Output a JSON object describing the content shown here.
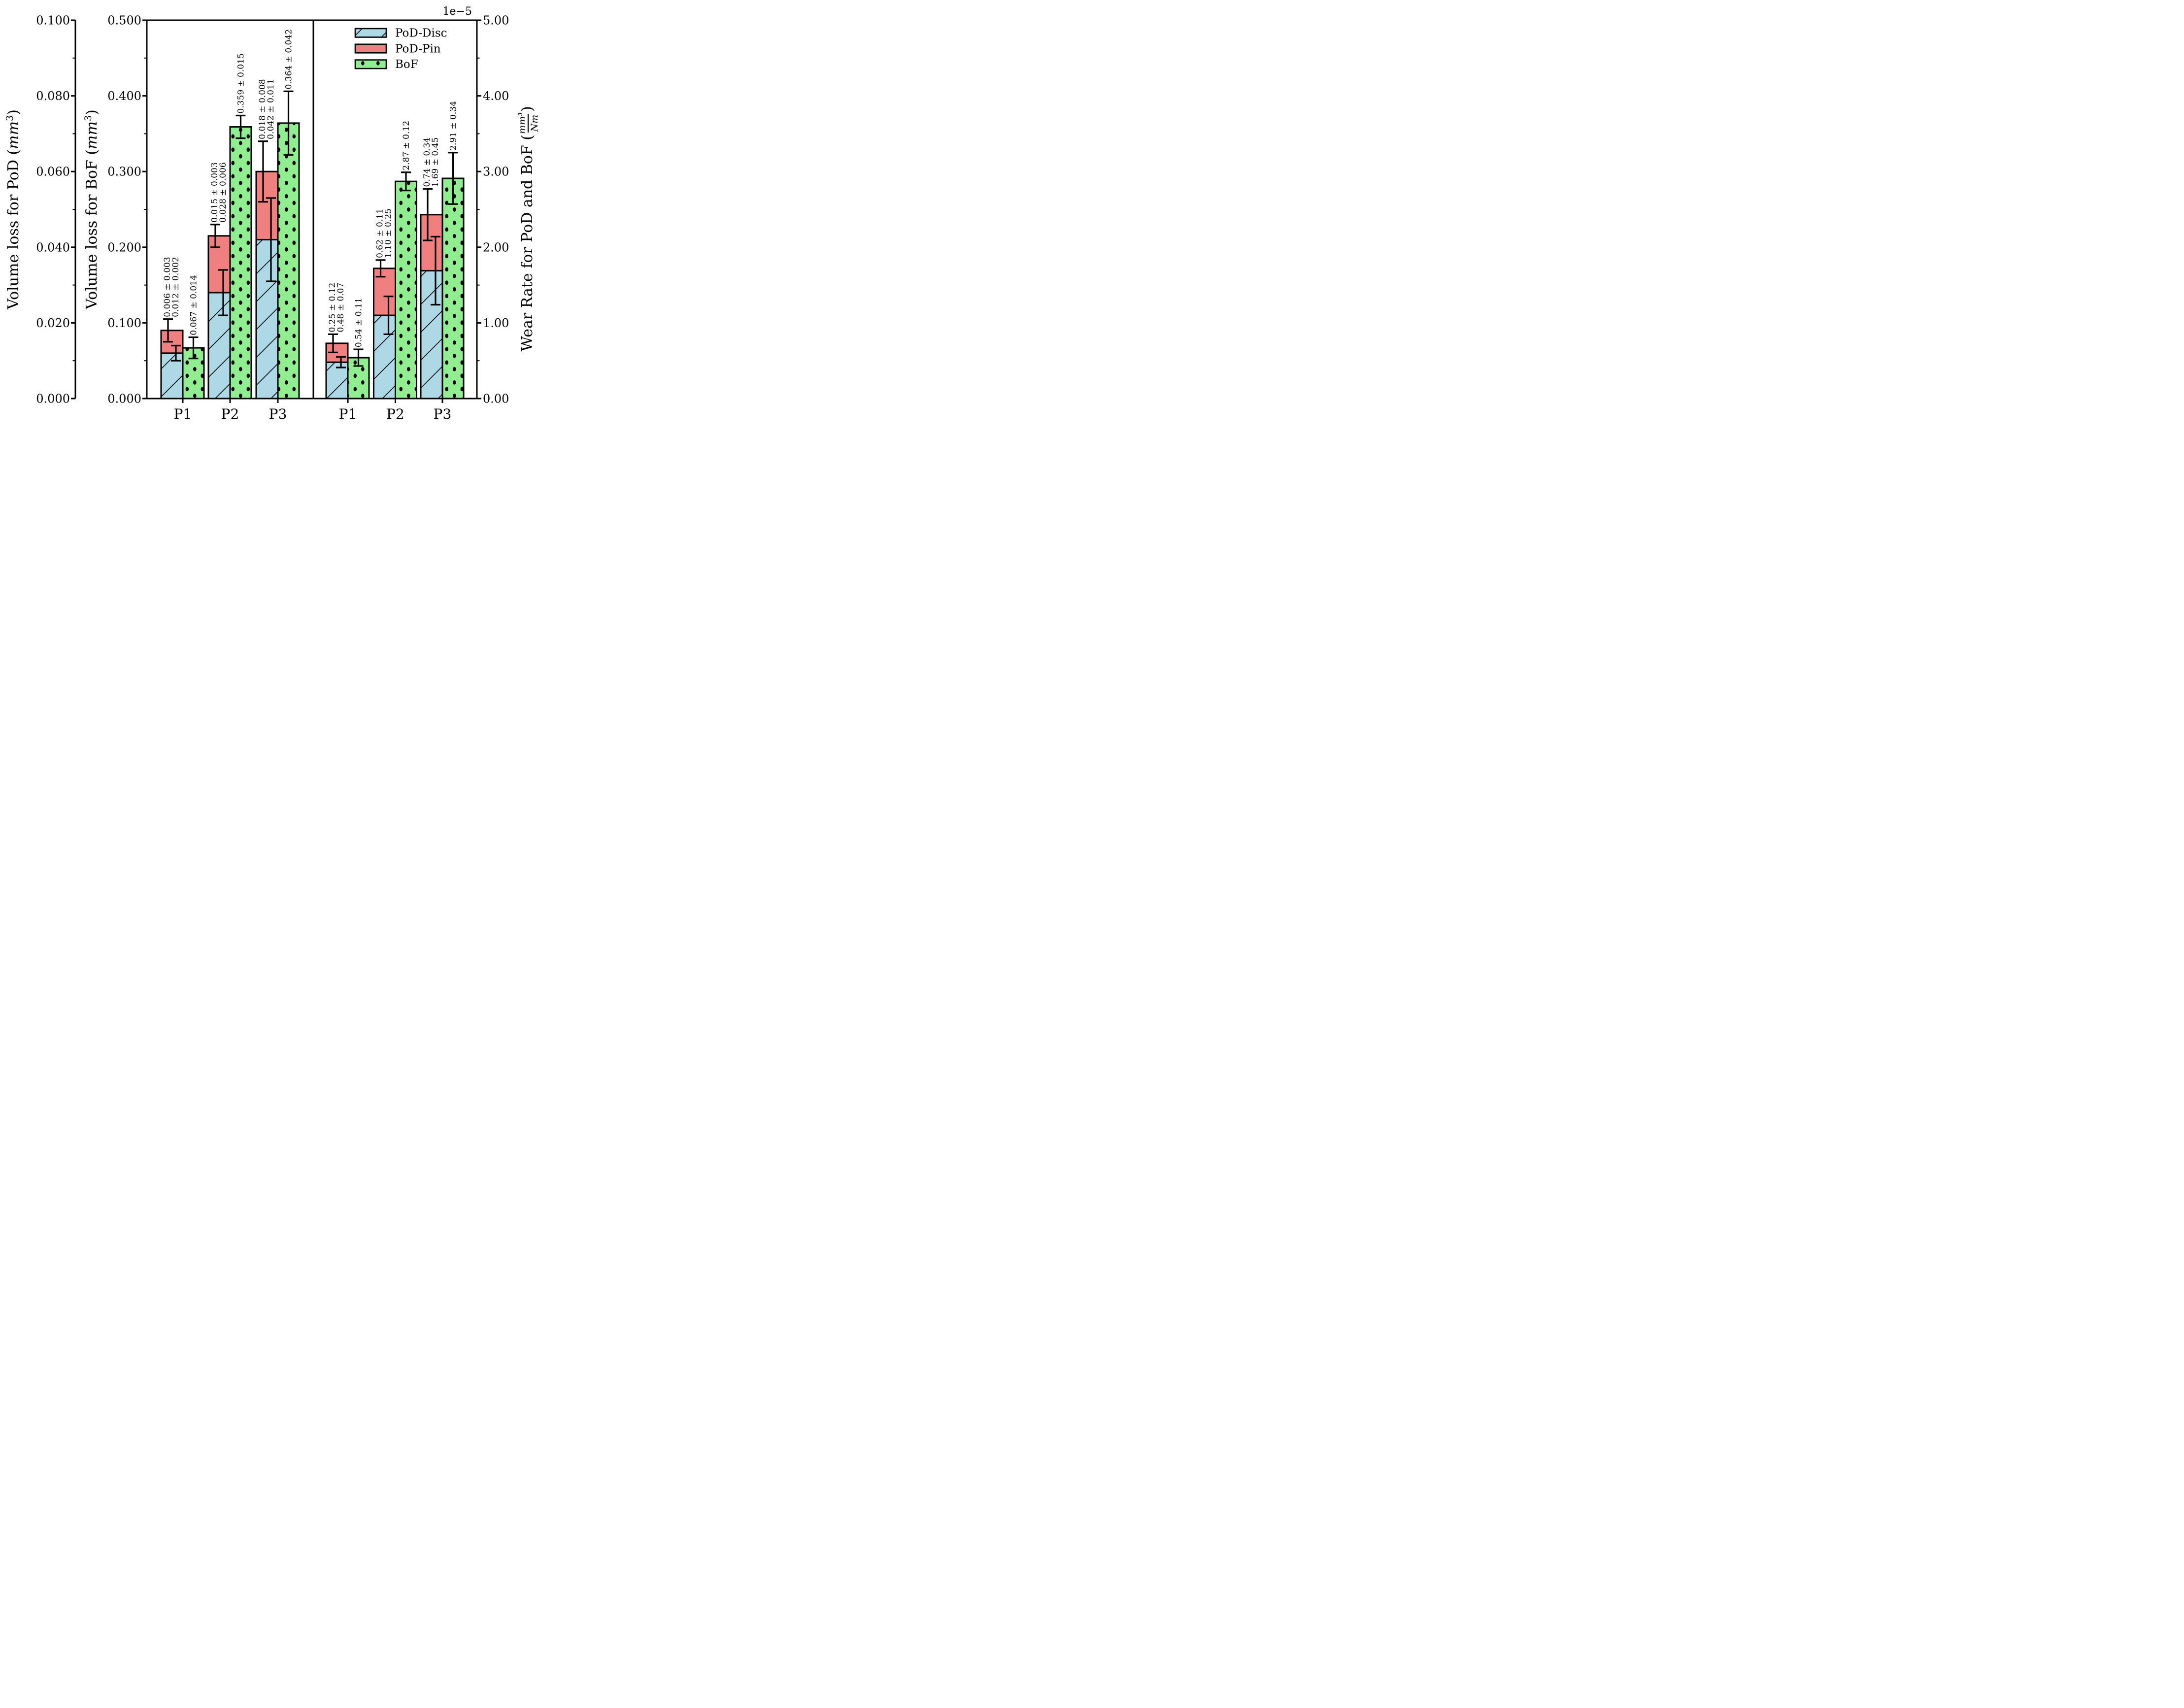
{
  "background": "#ffffff",
  "chart_data": {
    "type": "bar",
    "title": "",
    "grid": false,
    "legend_position": "upper area of right panel",
    "offset_label": "1e−5",
    "colors": {
      "disc": "#ADD8E6",
      "pin": "#F08080",
      "bof": "#90EE90",
      "edge": "#000000"
    },
    "legend": [
      {
        "label": "PoD-Disc",
        "color": "#ADD8E6",
        "hatch": "diagonal"
      },
      {
        "label": "PoD-Pin",
        "color": "#F08080",
        "hatch": "none"
      },
      {
        "label": "BoF",
        "color": "#90EE90",
        "hatch": "dots"
      }
    ],
    "axes": {
      "pod": {
        "title_pre": "Volume loss for PoD (",
        "title_math": "mm",
        "title_sup": "3",
        "title_post": ")",
        "range": [
          0,
          0.1
        ],
        "ticks": [
          "0.000",
          "0.020",
          "0.040",
          "0.060",
          "0.080",
          "0.100"
        ]
      },
      "bof": {
        "title_pre": "Volume loss for BoF (",
        "title_math": "mm",
        "title_sup": "3",
        "title_post": ")",
        "range": [
          0,
          0.5
        ],
        "ticks": [
          "0.000",
          "0.100",
          "0.200",
          "0.300",
          "0.400",
          "0.500"
        ]
      },
      "wear": {
        "title_pre": "Wear Rate for PoD and BoF (",
        "frac_num": "mm³",
        "frac_den": "Nm",
        "title_post": ")",
        "range": [
          0,
          5
        ],
        "ticks": [
          "0.00",
          "1.00",
          "2.00",
          "3.00",
          "4.00",
          "5.00"
        ]
      }
    },
    "x_ticklabels": [
      "P1",
      "P2",
      "P3",
      "P1",
      "P2",
      "P3"
    ],
    "panels": [
      {
        "name": "volume-loss",
        "bar_axis": "pod",
        "bof_axis": "bof",
        "groups": [
          {
            "category": "P1",
            "disc": 0.012,
            "disc_err": 0.002,
            "pin": 0.006,
            "pin_err": 0.003,
            "bof": 0.067,
            "bof_err": 0.014,
            "labels": {
              "pin": "0.006 ± 0.003",
              "disc": "0.012 ± 0.002",
              "bof": "0.067 ± 0.014"
            }
          },
          {
            "category": "P2",
            "disc": 0.028,
            "disc_err": 0.006,
            "pin": 0.015,
            "pin_err": 0.003,
            "bof": 0.359,
            "bof_err": 0.015,
            "labels": {
              "pin": "0.015 ± 0.003",
              "disc": "0.028 ± 0.006",
              "bof": "0.359 ± 0.015"
            }
          },
          {
            "category": "P3",
            "disc": 0.042,
            "disc_err": 0.011,
            "pin": 0.018,
            "pin_err": 0.008,
            "bof": 0.364,
            "bof_err": 0.042,
            "labels": {
              "pin": "0.018 ± 0.008",
              "disc": "0.042 ± 0.011",
              "bof": "0.364 ± 0.042"
            }
          }
        ]
      },
      {
        "name": "wear-rate-1e-5",
        "bar_axis": "wear",
        "bof_axis": "wear",
        "groups": [
          {
            "category": "P1",
            "disc": 0.48,
            "disc_err": 0.07,
            "pin": 0.25,
            "pin_err": 0.12,
            "bof": 0.54,
            "bof_err": 0.11,
            "labels": {
              "pin": "0.25 ± 0.12",
              "disc": "0.48 ± 0.07",
              "bof": "0.54 ± 0.11"
            }
          },
          {
            "category": "P2",
            "disc": 1.1,
            "disc_err": 0.25,
            "pin": 0.62,
            "pin_err": 0.11,
            "bof": 2.87,
            "bof_err": 0.12,
            "labels": {
              "pin": "0.62 ± 0.11",
              "disc": "1.10 ± 0.25",
              "bof": "2.87 ± 0.12"
            }
          },
          {
            "category": "P3",
            "disc": 1.69,
            "disc_err": 0.45,
            "pin": 0.74,
            "pin_err": 0.34,
            "bof": 2.91,
            "bof_err": 0.34,
            "labels": {
              "pin": "0.74 ± 0.34",
              "disc": "1.69 ± 0.45",
              "bof": "2.91 ± 0.34"
            }
          }
        ]
      }
    ]
  }
}
